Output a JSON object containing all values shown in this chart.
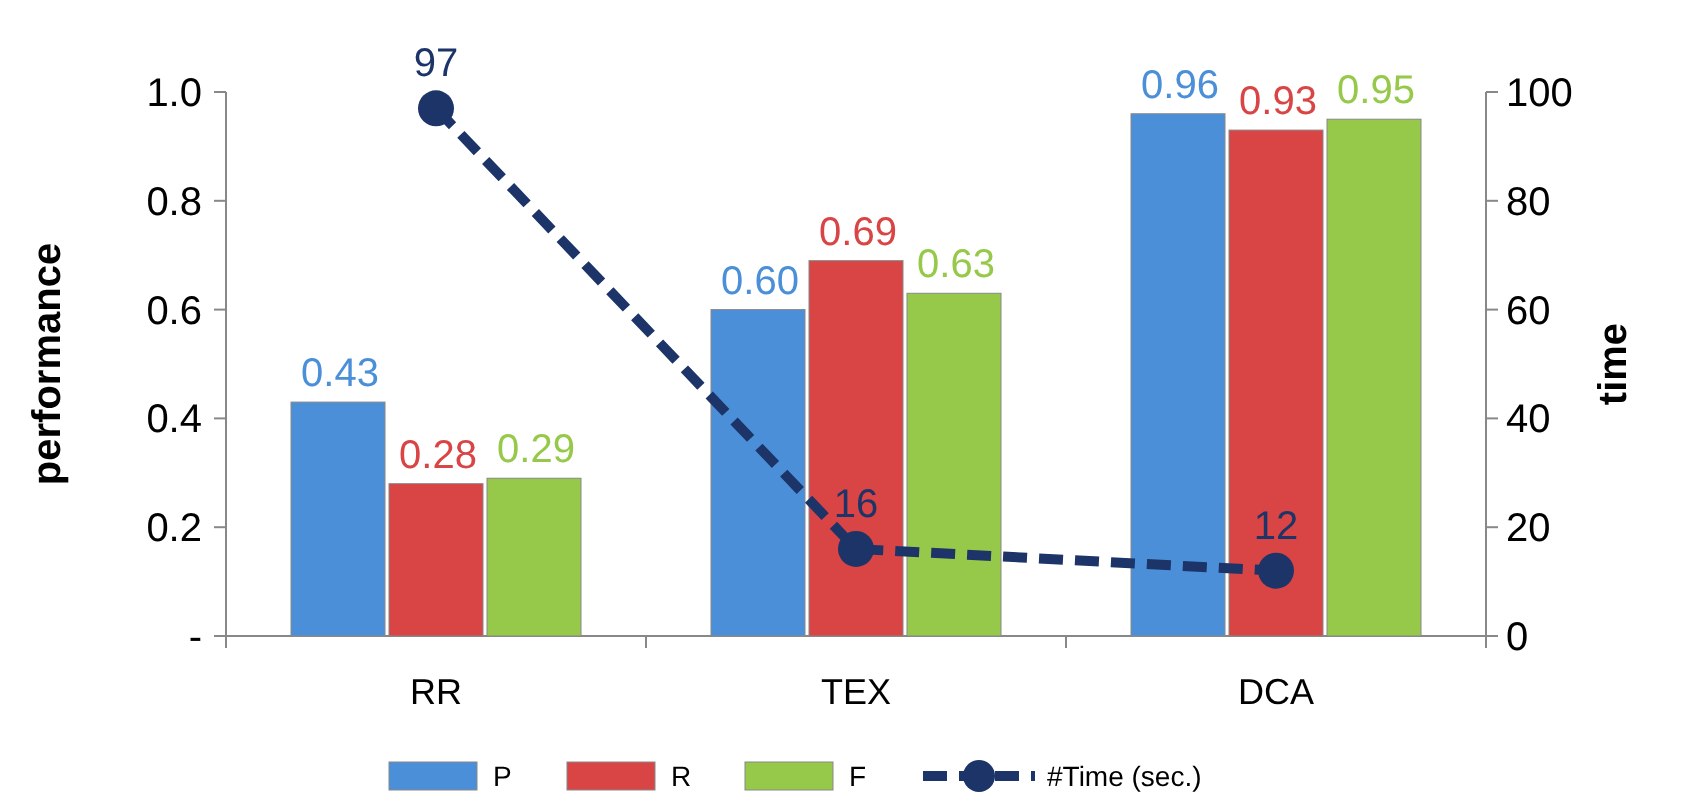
{
  "chart_data": {
    "type": "bar",
    "categories": [
      "RR",
      "TEX",
      "DCA"
    ],
    "ylabel": "performance",
    "y2label": "time",
    "ylim": [
      0,
      1
    ],
    "yticks": [
      {
        "value": 0,
        "label": "-"
      },
      0.2,
      0.4,
      0.6,
      0.8,
      {
        "value": 1,
        "label": "1.0"
      }
    ],
    "y2lim": [
      0,
      100
    ],
    "y2ticks": [
      0,
      20,
      40,
      60,
      80,
      100
    ],
    "series": [
      {
        "name": "P",
        "color": "#4a8fd8",
        "values": [
          0.43,
          0.6,
          0.96
        ],
        "value_labels": [
          "0.43",
          "0.60",
          "0.96"
        ]
      },
      {
        "name": "R",
        "color": "#d94444",
        "values": [
          0.28,
          0.69,
          0.93
        ],
        "value_labels": [
          "0.28",
          "0.69",
          "0.93"
        ]
      },
      {
        "name": "F",
        "color": "#96c94a",
        "values": [
          0.29,
          0.63,
          0.95
        ],
        "value_labels": [
          "0.29",
          "0.63",
          "0.95"
        ]
      },
      {
        "name": "#Time (sec.)",
        "type": "line",
        "axis": "y2",
        "color": "#1c3468",
        "values": [
          97,
          16,
          12
        ],
        "value_labels": [
          "97",
          "16",
          "12"
        ],
        "marker": "circle",
        "line_style": "dashed"
      }
    ],
    "legend": "bottom",
    "grid": false
  }
}
